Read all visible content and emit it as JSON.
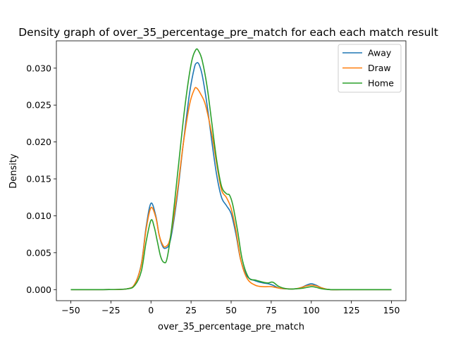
{
  "chart_data": {
    "type": "line",
    "title": "Density graph of over_35_percentage_pre_match for each each match result",
    "xlabel": "over_35_percentage_pre_match",
    "ylabel": "Density",
    "xlim": [
      -59,
      159
    ],
    "ylim": [
      -0.0015,
      0.0337
    ],
    "xticks": [
      -50,
      -25,
      0,
      25,
      50,
      75,
      100,
      125,
      150
    ],
    "xtick_labels": [
      "−50",
      "−25",
      "0",
      "25",
      "50",
      "75",
      "100",
      "125",
      "150"
    ],
    "yticks": [
      0.0,
      0.005,
      0.01,
      0.015,
      0.02,
      0.025,
      0.03
    ],
    "ytick_labels": [
      "0.000",
      "0.005",
      "0.010",
      "0.015",
      "0.020",
      "0.025",
      "0.030"
    ],
    "grid": false,
    "legend_position": "top-right",
    "series": [
      {
        "name": "Away",
        "color": "#1f77b4",
        "points": [
          [
            -50,
            0
          ],
          [
            -30,
            0
          ],
          [
            -15,
            0.0001
          ],
          [
            -10,
            0.0008
          ],
          [
            -6,
            0.0035
          ],
          [
            -3,
            0.0085
          ],
          [
            0,
            0.0117
          ],
          [
            3,
            0.01
          ],
          [
            5,
            0.0075
          ],
          [
            7,
            0.006
          ],
          [
            9,
            0.0056
          ],
          [
            12,
            0.0066
          ],
          [
            16,
            0.012
          ],
          [
            20,
            0.0195
          ],
          [
            24,
            0.0265
          ],
          [
            27,
            0.03
          ],
          [
            28.5,
            0.0307
          ],
          [
            30,
            0.0305
          ],
          [
            32,
            0.029
          ],
          [
            35,
            0.025
          ],
          [
            38,
            0.02
          ],
          [
            41,
            0.0155
          ],
          [
            44,
            0.0125
          ],
          [
            47,
            0.0114
          ],
          [
            50,
            0.0103
          ],
          [
            53,
            0.0075
          ],
          [
            56,
            0.004
          ],
          [
            60,
            0.0018
          ],
          [
            65,
            0.0012
          ],
          [
            70,
            0.0009
          ],
          [
            73,
            0.0008
          ],
          [
            76,
            0.0006
          ],
          [
            80,
            0.0002
          ],
          [
            85,
            0.0001
          ],
          [
            90,
            0.0001
          ],
          [
            94,
            0.0003
          ],
          [
            97,
            0.0006
          ],
          [
            100,
            0.0008
          ],
          [
            103,
            0.0006
          ],
          [
            107,
            0.0002
          ],
          [
            112,
            0
          ],
          [
            125,
            0
          ],
          [
            150,
            0
          ]
        ]
      },
      {
        "name": "Draw",
        "color": "#ff7f0e",
        "points": [
          [
            -50,
            0
          ],
          [
            -30,
            0
          ],
          [
            -15,
            0.0001
          ],
          [
            -10,
            0.0008
          ],
          [
            -6,
            0.0034
          ],
          [
            -3,
            0.0082
          ],
          [
            0,
            0.0111
          ],
          [
            3,
            0.0098
          ],
          [
            5,
            0.0075
          ],
          [
            7,
            0.0062
          ],
          [
            9,
            0.0058
          ],
          [
            12,
            0.007
          ],
          [
            16,
            0.0125
          ],
          [
            20,
            0.0195
          ],
          [
            24,
            0.025
          ],
          [
            27,
            0.0271
          ],
          [
            28.5,
            0.0273
          ],
          [
            31,
            0.0265
          ],
          [
            34,
            0.025
          ],
          [
            38,
            0.021
          ],
          [
            41,
            0.017
          ],
          [
            44,
            0.0135
          ],
          [
            47,
            0.0125
          ],
          [
            50,
            0.011
          ],
          [
            53,
            0.008
          ],
          [
            56,
            0.004
          ],
          [
            60,
            0.0015
          ],
          [
            65,
            0.0006
          ],
          [
            70,
            0.0004
          ],
          [
            75,
            0.0004
          ],
          [
            80,
            0.0002
          ],
          [
            85,
            0.0001
          ],
          [
            90,
            0.0001
          ],
          [
            94,
            0.0003
          ],
          [
            97,
            0.0005
          ],
          [
            100,
            0.0006
          ],
          [
            103,
            0.0005
          ],
          [
            107,
            0.0002
          ],
          [
            112,
            0
          ],
          [
            125,
            0
          ],
          [
            150,
            0
          ]
        ]
      },
      {
        "name": "Home",
        "color": "#2ca02c",
        "points": [
          [
            -50,
            0
          ],
          [
            -30,
            0
          ],
          [
            -15,
            0.0001
          ],
          [
            -10,
            0.0006
          ],
          [
            -6,
            0.0025
          ],
          [
            -3,
            0.0065
          ],
          [
            0,
            0.0094
          ],
          [
            2,
            0.0085
          ],
          [
            4,
            0.0065
          ],
          [
            6,
            0.0045
          ],
          [
            8,
            0.0037
          ],
          [
            10,
            0.0042
          ],
          [
            13,
            0.0085
          ],
          [
            17,
            0.0165
          ],
          [
            21,
            0.0245
          ],
          [
            25,
            0.0305
          ],
          [
            28,
            0.0325
          ],
          [
            30,
            0.0322
          ],
          [
            32,
            0.031
          ],
          [
            35,
            0.0275
          ],
          [
            38,
            0.0225
          ],
          [
            41,
            0.0175
          ],
          [
            44,
            0.014
          ],
          [
            47,
            0.013
          ],
          [
            49,
            0.0128
          ],
          [
            51,
            0.0115
          ],
          [
            54,
            0.008
          ],
          [
            57,
            0.004
          ],
          [
            61,
            0.0016
          ],
          [
            65,
            0.0013
          ],
          [
            70,
            0.001
          ],
          [
            73,
            0.0009
          ],
          [
            76,
            0.001
          ],
          [
            80,
            0.0004
          ],
          [
            85,
            0.0001
          ],
          [
            90,
            0.0001
          ],
          [
            95,
            0.0002
          ],
          [
            100,
            0.0004
          ],
          [
            103,
            0.0003
          ],
          [
            107,
            0.0001
          ],
          [
            112,
            0
          ],
          [
            125,
            0
          ],
          [
            150,
            0
          ]
        ]
      }
    ]
  }
}
